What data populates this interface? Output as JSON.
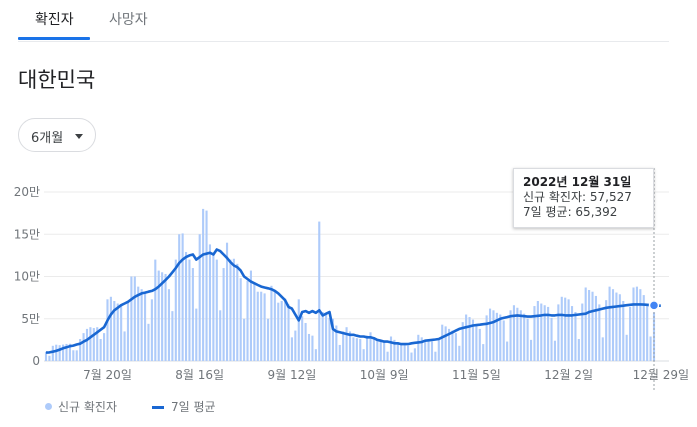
{
  "tabs": [
    {
      "label": "확진자",
      "active": true
    },
    {
      "label": "사망자",
      "active": false
    }
  ],
  "region_title": "대한민국",
  "period_select": {
    "selected": "6개월"
  },
  "tooltip": {
    "date": "2022년 12월 31일",
    "new_cases": "신규 확진자: 57,527",
    "avg_7d": "7일 평균: 65,392"
  },
  "legend": {
    "bars": "신규 확진자",
    "line": "7일 평균"
  },
  "colors": {
    "accent": "#1a73e8",
    "bar": "#aecbfa",
    "line": "#1967d2",
    "grid": "#ebebeb"
  },
  "chart_data": {
    "type": "bar",
    "ylim": [
      0,
      200000
    ],
    "y_ticks": [
      {
        "value": 0,
        "label": "0"
      },
      {
        "value": 50000,
        "label": "5만"
      },
      {
        "value": 100000,
        "label": "10만"
      },
      {
        "value": 150000,
        "label": "15만"
      },
      {
        "value": 200000,
        "label": "20만"
      }
    ],
    "x_ticks": [
      {
        "day": 18,
        "label": "7월 20일"
      },
      {
        "day": 45,
        "label": "8월 16일"
      },
      {
        "day": 72,
        "label": "9월 12일"
      },
      {
        "day": 99,
        "label": "10월 9일"
      },
      {
        "day": 126,
        "label": "11월 5일"
      },
      {
        "day": 153,
        "label": "12월 2일"
      },
      {
        "day": 180,
        "label": "12월 29일"
      }
    ],
    "x_range": [
      "2022-07-02",
      "2022-12-31"
    ],
    "series": [
      {
        "name": "신규 확진자",
        "kind": "bar",
        "values": [
          10700,
          6200,
          18000,
          19300,
          18700,
          19400,
          20200,
          20400,
          12700,
          12600,
          26000,
          33000,
          38000,
          40000,
          39000,
          40000,
          26000,
          33000,
          73000,
          76000,
          71000,
          68000,
          65000,
          35000,
          70000,
          100000,
          100000,
          88000,
          85000,
          82000,
          44000,
          73000,
          120000,
          107000,
          105000,
          103000,
          85000,
          59000,
          120000,
          150000,
          151000,
          129000,
          120000,
          110000,
          62000,
          150000,
          180000,
          178000,
          138000,
          128000,
          120000,
          60000,
          110000,
          140000,
          120000,
          121000,
          115000,
          98000,
          50000,
          95000,
          107000,
          92000,
          82000,
          82000,
          80000,
          50000,
          89000,
          82000,
          69000,
          71000,
          74000,
          67000,
          28000,
          36000,
          73000,
          53000,
          45000,
          32000,
          30000,
          14000,
          165000,
          58000,
          55000,
          51000,
          50000,
          42000,
          19000,
          35000,
          40000,
          35000,
          28000,
          27000,
          26000,
          14000,
          30000,
          34000,
          28000,
          25000,
          24000,
          23000,
          11000,
          29000,
          25000,
          22000,
          20000,
          20000,
          18000,
          10000,
          15000,
          31000,
          28000,
          25000,
          24000,
          23000,
          11000,
          25000,
          43000,
          41000,
          38000,
          36000,
          33000,
          18000,
          46000,
          55000,
          52000,
          49000,
          43000,
          38000,
          20000,
          54000,
          62000,
          60000,
          57000,
          55000,
          48000,
          23000,
          60000,
          66000,
          63000,
          60000,
          56000,
          50000,
          25000,
          65000,
          71000,
          68000,
          66000,
          64000,
          51000,
          24000,
          67000,
          76000,
          75000,
          73000,
          65000,
          58000,
          26000,
          68000,
          87000,
          84000,
          82000,
          77000,
          67000,
          28000,
          72000,
          88000,
          85000,
          81000,
          79000,
          71000,
          31000,
          64000,
          87000,
          88000,
          85000,
          78000,
          67000,
          29000,
          57527
        ]
      },
      {
        "name": "7일 평균",
        "kind": "line",
        "values": [
          10000,
          10200,
          11000,
          12000,
          13500,
          15000,
          16200,
          17500,
          18200,
          19500,
          20500,
          23000,
          25000,
          28000,
          31000,
          34000,
          37000,
          40000,
          48000,
          55000,
          60000,
          63000,
          66000,
          68000,
          70000,
          73000,
          76000,
          78000,
          80000,
          81000,
          82000,
          83000,
          85000,
          88000,
          92000,
          96000,
          100000,
          105000,
          110000,
          116000,
          120000,
          123000,
          125000,
          126000,
          120000,
          123000,
          126000,
          127000,
          128000,
          126000,
          132000,
          130000,
          126000,
          122000,
          117000,
          113000,
          111000,
          107000,
          100000,
          97000,
          94000,
          92000,
          90000,
          88000,
          87000,
          86000,
          85000,
          83000,
          80000,
          76000,
          72000,
          64000,
          62000,
          55000,
          48000,
          58000,
          59000,
          57000,
          59000,
          57000,
          60000,
          54000,
          56000,
          58000,
          38000,
          35000,
          34000,
          33000,
          32000,
          31000,
          31000,
          30000,
          29000,
          29000,
          28000,
          28000,
          27000,
          25000,
          24000,
          23000,
          23000,
          22000,
          21000,
          21000,
          20000,
          20000,
          20000,
          21000,
          21500,
          22000,
          22500,
          24000,
          24500,
          25000,
          25500,
          26000,
          28000,
          30000,
          32000,
          34000,
          36000,
          38000,
          39000,
          40000,
          41000,
          42000,
          42500,
          43000,
          43500,
          44000,
          45000,
          46000,
          48000,
          50000,
          51000,
          52000,
          53000,
          53500,
          54000,
          53500,
          53000,
          52500,
          52500,
          53000,
          53500,
          54000,
          54500,
          54500,
          54000,
          54000,
          54500,
          54500,
          54000,
          54000,
          54000,
          54500,
          55000,
          55500,
          56000,
          58000,
          59000,
          60000,
          61000,
          62000,
          63000,
          63500,
          64000,
          64500,
          65000,
          65500,
          66000,
          66500,
          67000,
          67000,
          67000,
          66800,
          66500,
          66000,
          65800,
          65500,
          65392
        ]
      }
    ]
  }
}
